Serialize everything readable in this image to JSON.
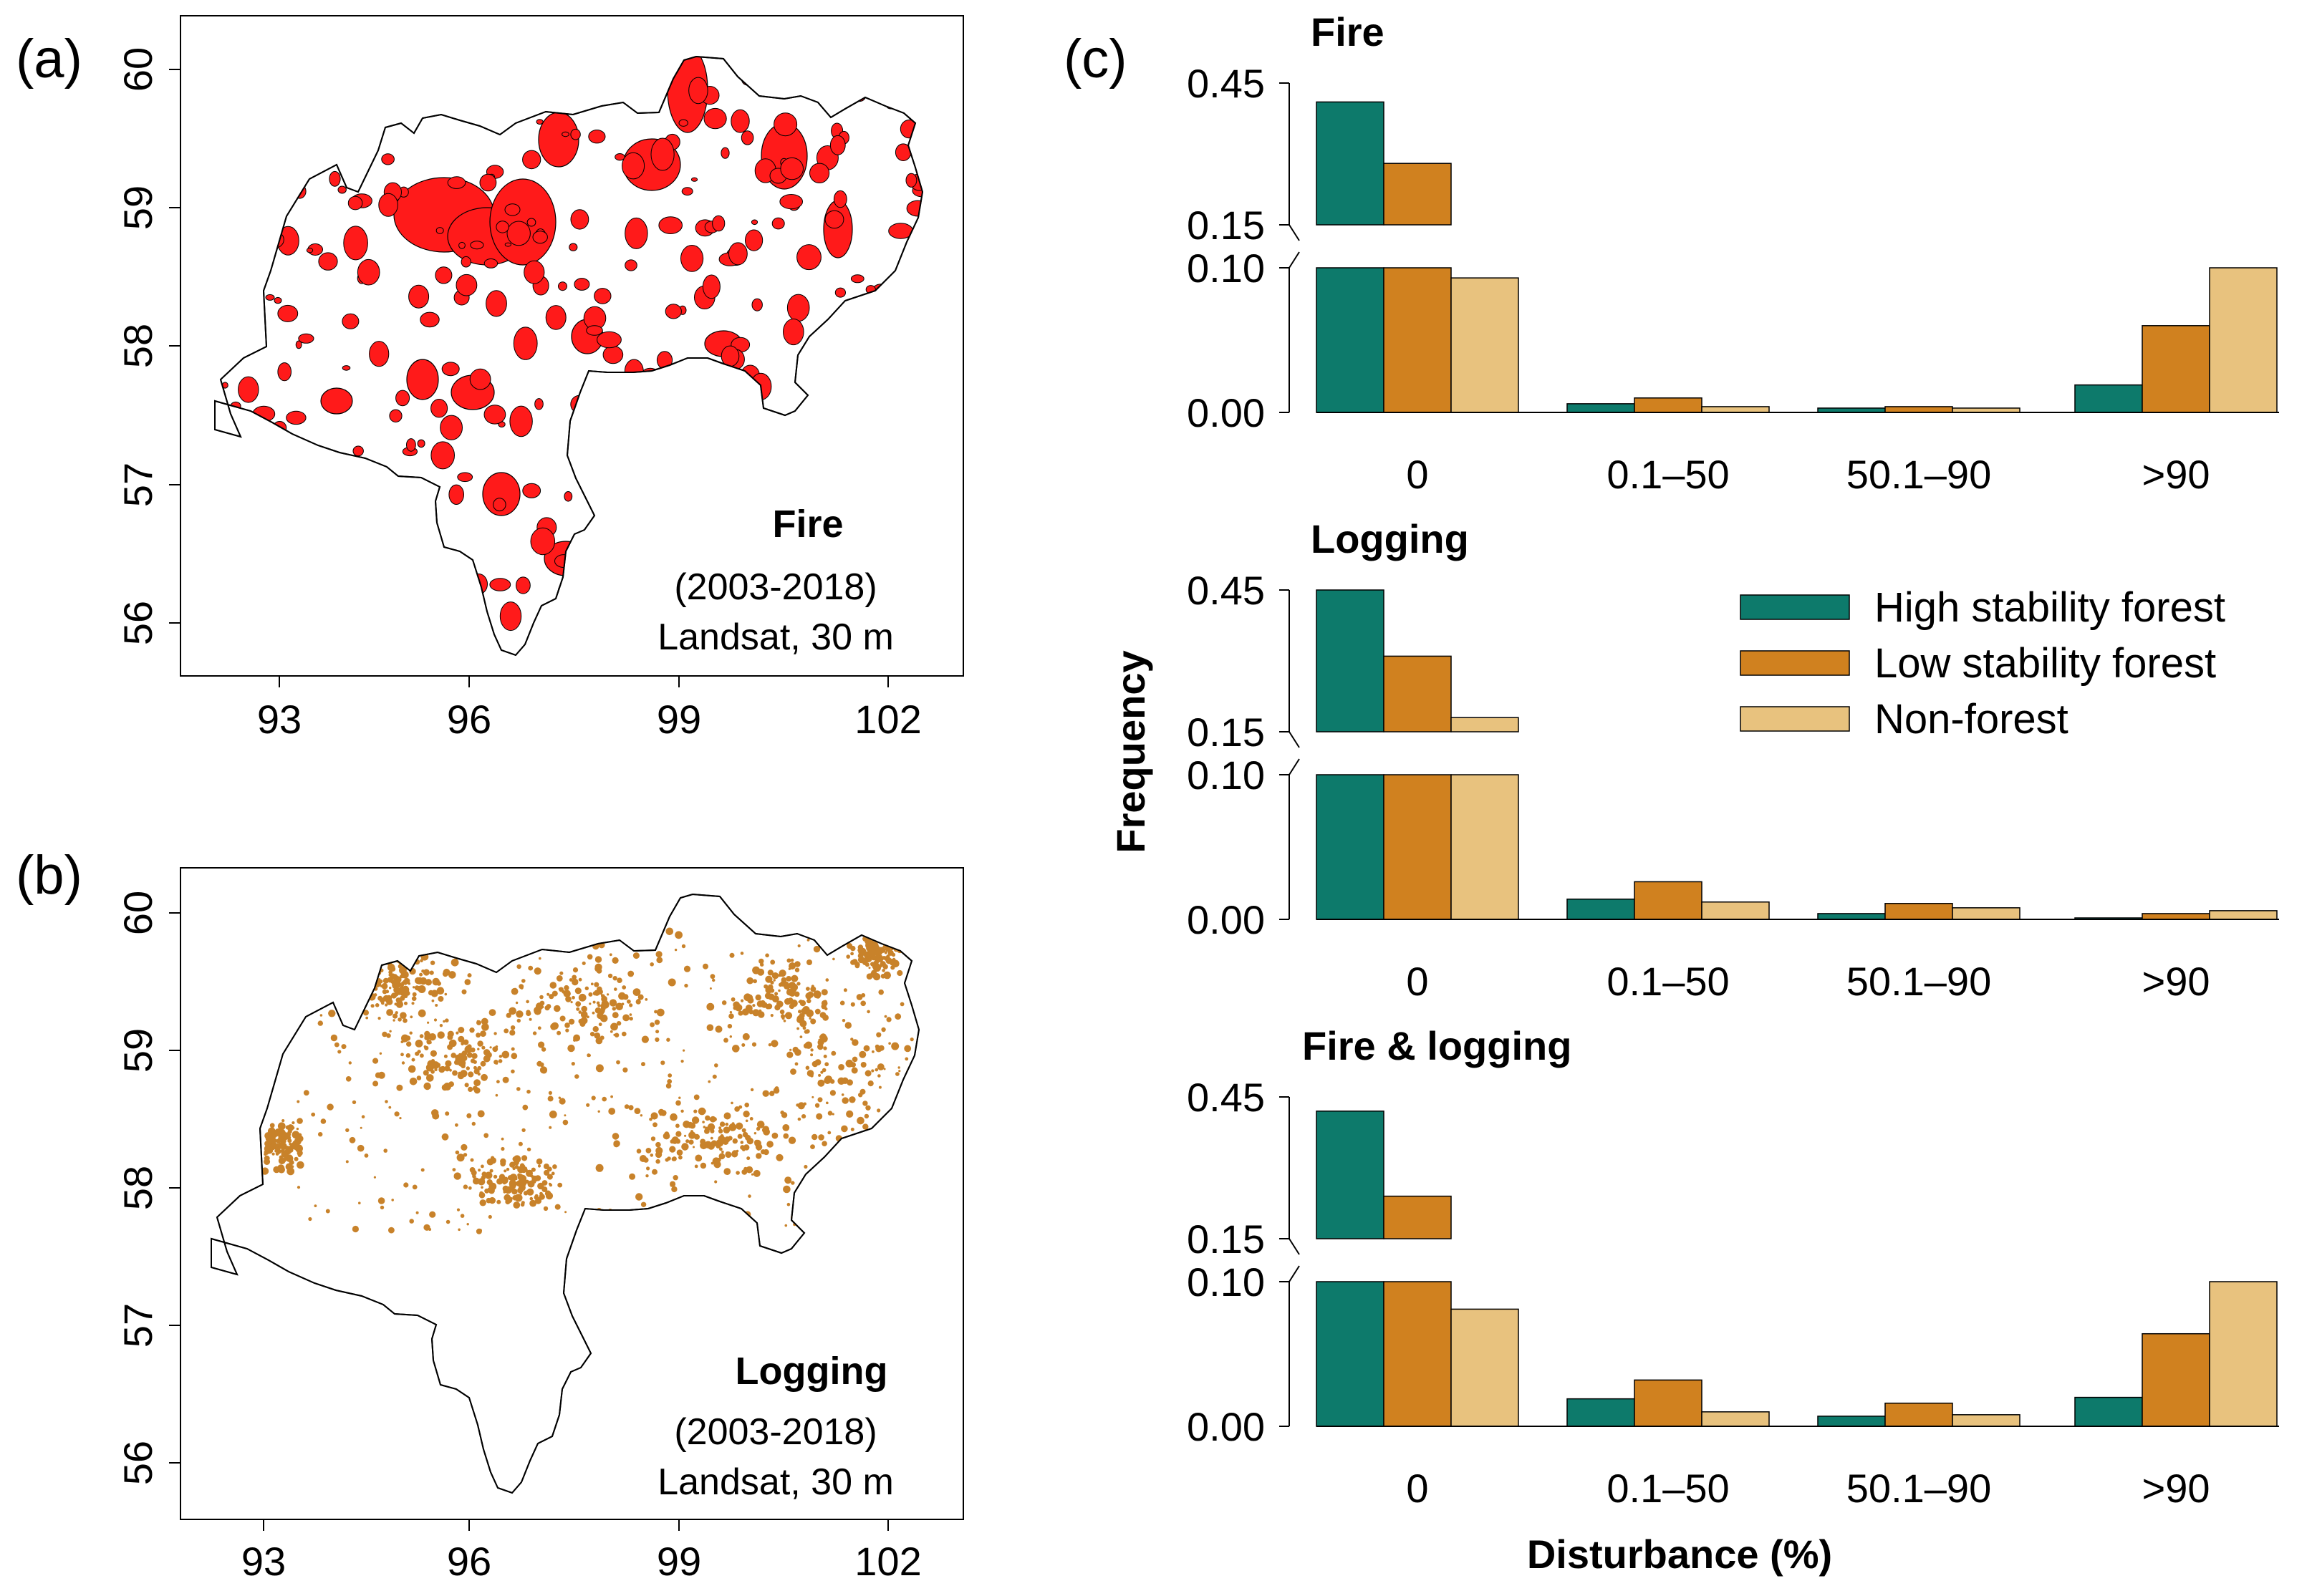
{
  "panels": {
    "a": {
      "label": "(a)",
      "title": "Fire",
      "period": "(2003-2018)",
      "source": "Landsat, 30 m",
      "x_ticks": [
        "93",
        "96",
        "99",
        "102"
      ],
      "y_ticks": [
        "60",
        "59",
        "58",
        "57",
        "56"
      ],
      "color": "#ff1a1a"
    },
    "b": {
      "label": "(b)",
      "title": "Logging",
      "period": "(2003-2018)",
      "source": "Landsat, 30 m",
      "x_ticks": [
        "93",
        "96",
        "99",
        "102"
      ],
      "y_ticks": [
        "60",
        "59",
        "58",
        "57",
        "56"
      ],
      "color": "#c8822a"
    },
    "c": {
      "label": "(c)"
    }
  },
  "legend": [
    {
      "name": "High stability forest",
      "color": "#0d7a6b"
    },
    {
      "name": "Low stability forest",
      "color": "#d0811f"
    },
    {
      "name": "Non-forest",
      "color": "#e8c27e"
    }
  ],
  "axis": {
    "ylabel": "Frequency",
    "xlabel": "Disturbance (%)",
    "upper_ticks": [
      "0.45",
      "0.15"
    ],
    "lower_ticks": [
      "0.10",
      "0.00"
    ]
  },
  "chart_data": [
    {
      "type": "bar",
      "title": "Fire",
      "categories": [
        "0",
        "0.1–50",
        "50.1–90",
        ">90"
      ],
      "series": [
        {
          "name": "High stability forest",
          "values": [
            0.41,
            0.006,
            0.003,
            0.019
          ]
        },
        {
          "name": "Low stability forest",
          "values": [
            0.28,
            0.01,
            0.004,
            0.06
          ]
        },
        {
          "name": "Non-forest",
          "values": [
            0.093,
            0.004,
            0.003,
            0.15
          ]
        }
      ],
      "ylim_lower": [
        0,
        0.1
      ],
      "ylim_upper": [
        0.15,
        0.45
      ],
      "xlabel": "",
      "ylabel": "Frequency"
    },
    {
      "type": "bar",
      "title": "Logging",
      "categories": [
        "0",
        "0.1–50",
        "50.1–90",
        ">90"
      ],
      "series": [
        {
          "name": "High stability forest",
          "values": [
            0.45,
            0.014,
            0.004,
            0.001
          ]
        },
        {
          "name": "Low stability forest",
          "values": [
            0.31,
            0.026,
            0.011,
            0.004
          ]
        },
        {
          "name": "Non-forest",
          "values": [
            0.18,
            0.012,
            0.008,
            0.006
          ]
        }
      ],
      "ylim_lower": [
        0,
        0.1
      ],
      "ylim_upper": [
        0.15,
        0.45
      ],
      "xlabel": "",
      "ylabel": "Frequency"
    },
    {
      "type": "bar",
      "title": "Fire & logging",
      "categories": [
        "0",
        "0.1–50",
        "50.1–90",
        ">90"
      ],
      "series": [
        {
          "name": "High stability forest",
          "values": [
            0.42,
            0.019,
            0.007,
            0.02
          ]
        },
        {
          "name": "Low stability forest",
          "values": [
            0.24,
            0.032,
            0.016,
            0.064
          ]
        },
        {
          "name": "Non-forest",
          "values": [
            0.081,
            0.01,
            0.008,
            0.13
          ]
        }
      ],
      "ylim_lower": [
        0,
        0.1
      ],
      "ylim_upper": [
        0.15,
        0.45
      ],
      "xlabel": "Disturbance (%)",
      "ylabel": "Frequency"
    }
  ]
}
